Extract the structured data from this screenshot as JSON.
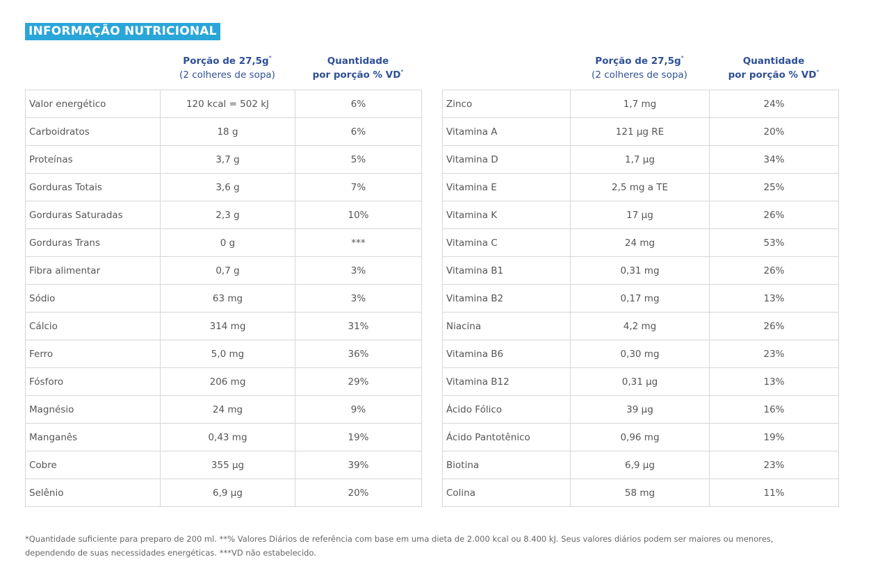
{
  "title": "INFORMAÇÃO NUTRICIONAL",
  "headers": {
    "portion_line1": "Porção de 27,5g",
    "portion_line2": "(2 colheres de sopa)",
    "qty_line1": "Quantidade",
    "qty_line2": "por porção % VD",
    "asterisk": "*"
  },
  "left_rows": [
    {
      "name": "Valor energético",
      "portion": "120 kcal = 502 kJ",
      "vd": "6%"
    },
    {
      "name": "Carboidratos",
      "portion": "18 g",
      "vd": "6%"
    },
    {
      "name": "Proteínas",
      "portion": "3,7 g",
      "vd": "5%"
    },
    {
      "name": "Gorduras Totais",
      "portion": "3,6 g",
      "vd": "7%"
    },
    {
      "name": "Gorduras Saturadas",
      "portion": "2,3 g",
      "vd": "10%"
    },
    {
      "name": "Gorduras Trans",
      "portion": "0 g",
      "vd": "***"
    },
    {
      "name": "Fibra alimentar",
      "portion": "0,7 g",
      "vd": "3%"
    },
    {
      "name": "Sódio",
      "portion": "63 mg",
      "vd": "3%"
    },
    {
      "name": "Cálcio",
      "portion": "314 mg",
      "vd": "31%"
    },
    {
      "name": "Ferro",
      "portion": "5,0 mg",
      "vd": "36%"
    },
    {
      "name": "Fósforo",
      "portion": "206 mg",
      "vd": "29%"
    },
    {
      "name": "Magnésio",
      "portion": "24 mg",
      "vd": "9%"
    },
    {
      "name": "Manganês",
      "portion": "0,43 mg",
      "vd": "19%"
    },
    {
      "name": "Cobre",
      "portion": "355 µg",
      "vd": "39%"
    },
    {
      "name": "Selênio",
      "portion": "6,9 µg",
      "vd": "20%"
    }
  ],
  "right_rows": [
    {
      "name": "Zinco",
      "portion": "1,7 mg",
      "vd": "24%"
    },
    {
      "name": "Vitamina A",
      "portion": "121 µg RE",
      "vd": "20%"
    },
    {
      "name": "Vitamina D",
      "portion": "1,7 µg",
      "vd": "34%"
    },
    {
      "name": "Vitamina E",
      "portion": "2,5 mg a TE",
      "vd": "25%"
    },
    {
      "name": "Vitamina K",
      "portion": "17 µg",
      "vd": "26%"
    },
    {
      "name": "Vitamina C",
      "portion": "24 mg",
      "vd": "53%"
    },
    {
      "name": "Vitamina B1",
      "portion": "0,31 mg",
      "vd": "26%"
    },
    {
      "name": "Vitamina B2",
      "portion": "0,17 mg",
      "vd": "13%"
    },
    {
      "name": "Niacina",
      "portion": "4,2 mg",
      "vd": "26%"
    },
    {
      "name": "Vitamina B6",
      "portion": "0,30 mg",
      "vd": "23%"
    },
    {
      "name": "Vitamina B12",
      "portion": "0,31 µg",
      "vd": "13%"
    },
    {
      "name": "Ácido Fólico",
      "portion": "39 µg",
      "vd": "16%"
    },
    {
      "name": "Ácido Pantotênico",
      "portion": "0,96 mg",
      "vd": "19%"
    },
    {
      "name": "Biotina",
      "portion": "6,9 µg",
      "vd": "23%"
    },
    {
      "name": "Colina",
      "portion": "58 mg",
      "vd": "11%"
    }
  ],
  "footnote": "*Quantidade suficiente para preparo de 200 ml. **% Valores Diários de referência com base em uma dieta de 2.000 kcal ou 8.400 kJ. Seus valores diários podem ser maiores ou menores, dependendo de suas necessidades energéticas. ***VD não estabelecido."
}
